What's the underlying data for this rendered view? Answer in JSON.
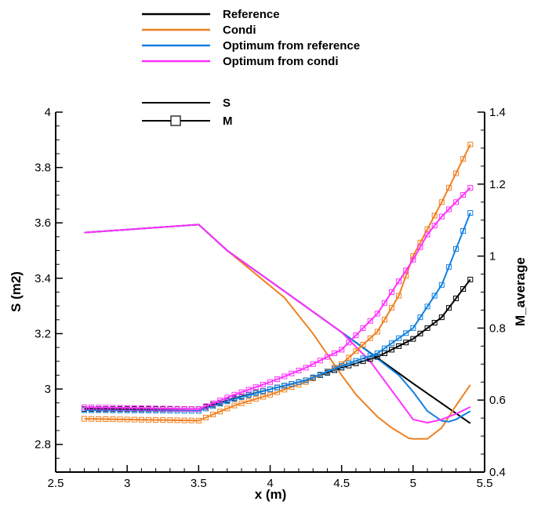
{
  "chart_data": {
    "type": "line",
    "title": "",
    "xlabel": "x (m)",
    "ylabel": "S (m2)",
    "y2label": "M_average",
    "xlim": [
      2.5,
      5.5
    ],
    "ylim": [
      2.7,
      4.0
    ],
    "y2lim": [
      0.4,
      1.4
    ],
    "x_ticks": [
      2.5,
      3,
      3.5,
      4,
      4.5,
      5,
      5.5
    ],
    "x_tick_labels": [
      "2.5",
      "3",
      "3.5",
      "4",
      "4.5",
      "5",
      "5.5"
    ],
    "y_ticks": [
      2.8,
      3,
      3.2,
      3.4,
      3.6,
      3.8,
      4
    ],
    "y_tick_labels": [
      "2.8",
      "3",
      "3.2",
      "3.4",
      "3.6",
      "3.8",
      "4"
    ],
    "y2_ticks": [
      0.4,
      0.6,
      0.8,
      1,
      1.2,
      1.4
    ],
    "y2_tick_labels": [
      "0.4",
      "0.6",
      "0.8",
      "1",
      "1.2",
      "1.4"
    ],
    "grid": false,
    "legend": {
      "placement": "top-center",
      "series_entries": [
        {
          "label": "Reference",
          "color": "#000000"
        },
        {
          "label": "Condi",
          "color": "#f08020"
        },
        {
          "label": "Optimum from reference",
          "color": "#1080e0"
        },
        {
          "label": "Optimum from condi",
          "color": "#ff30ff"
        }
      ],
      "style_entries": [
        {
          "label": "S",
          "marker": false
        },
        {
          "label": "M",
          "marker": true
        }
      ]
    },
    "series": [
      {
        "name": "Reference",
        "variable": "S",
        "axis": "left",
        "color": "#000000",
        "marker": false,
        "x": [
          2.7,
          3.5,
          3.7,
          4.0,
          4.5,
          5.0,
          5.4
        ],
        "y": [
          3.565,
          3.594,
          3.5,
          3.39,
          3.205,
          3.02,
          2.876
        ]
      },
      {
        "name": "Condi",
        "variable": "S",
        "axis": "left",
        "color": "#f08020",
        "marker": false,
        "x": [
          2.7,
          3.5,
          3.7,
          4.1,
          4.3,
          4.5,
          4.6,
          4.75,
          4.85,
          4.97,
          5.0,
          5.1,
          5.2,
          5.3,
          5.4
        ],
        "y": [
          3.565,
          3.594,
          3.5,
          3.33,
          3.2,
          3.05,
          2.98,
          2.9,
          2.86,
          2.822,
          2.82,
          2.82,
          2.86,
          2.94,
          3.015
        ]
      },
      {
        "name": "Optimum from reference",
        "variable": "S",
        "axis": "left",
        "color": "#1080e0",
        "marker": false,
        "x": [
          2.7,
          3.5,
          3.7,
          4.0,
          4.5,
          4.7,
          4.9,
          5.0,
          5.1,
          5.2,
          5.25,
          5.3,
          5.4
        ],
        "y": [
          3.565,
          3.594,
          3.5,
          3.39,
          3.205,
          3.13,
          3.05,
          2.99,
          2.92,
          2.885,
          2.882,
          2.89,
          2.92
        ]
      },
      {
        "name": "Optimum from condi",
        "variable": "S",
        "axis": "left",
        "color": "#ff30ff",
        "marker": false,
        "x": [
          2.7,
          3.5,
          3.7,
          4.0,
          4.5,
          4.7,
          4.9,
          5.0,
          5.1,
          5.2,
          5.3,
          5.4
        ],
        "y": [
          3.565,
          3.594,
          3.5,
          3.39,
          3.205,
          3.1,
          2.96,
          2.89,
          2.878,
          2.89,
          2.91,
          2.935
        ]
      },
      {
        "name": "Reference",
        "variable": "M",
        "axis": "right",
        "color": "#000000",
        "marker": true,
        "x": [
          2.7,
          3.5,
          3.75,
          4.0,
          4.25,
          4.5,
          4.75,
          5.0,
          5.2,
          5.4
        ],
        "y": [
          0.575,
          0.575,
          0.605,
          0.63,
          0.655,
          0.69,
          0.72,
          0.77,
          0.83,
          0.935
        ]
      },
      {
        "name": "Condi",
        "variable": "M",
        "axis": "right",
        "color": "#f08020",
        "marker": true,
        "x": [
          2.7,
          3.5,
          3.75,
          4.0,
          4.25,
          4.5,
          4.75,
          4.9,
          5.0,
          5.1,
          5.2,
          5.3,
          5.4
        ],
        "y": [
          0.548,
          0.543,
          0.585,
          0.615,
          0.65,
          0.7,
          0.79,
          0.89,
          1.0,
          1.075,
          1.15,
          1.23,
          1.31
        ]
      },
      {
        "name": "Optimum from reference",
        "variable": "M",
        "axis": "right",
        "color": "#1080e0",
        "marker": true,
        "x": [
          2.7,
          3.5,
          3.75,
          4.0,
          4.25,
          4.5,
          4.75,
          5.0,
          5.2,
          5.4
        ],
        "y": [
          0.572,
          0.57,
          0.603,
          0.63,
          0.655,
          0.695,
          0.73,
          0.8,
          0.92,
          1.12
        ]
      },
      {
        "name": "Optimum from condi",
        "variable": "M",
        "axis": "right",
        "color": "#ff30ff",
        "marker": true,
        "x": [
          2.7,
          3.5,
          3.75,
          4.0,
          4.25,
          4.5,
          4.75,
          5.0,
          5.1,
          5.2,
          5.3,
          5.4
        ],
        "y": [
          0.58,
          0.575,
          0.615,
          0.65,
          0.69,
          0.74,
          0.84,
          0.99,
          1.06,
          1.11,
          1.15,
          1.19
        ]
      }
    ]
  }
}
